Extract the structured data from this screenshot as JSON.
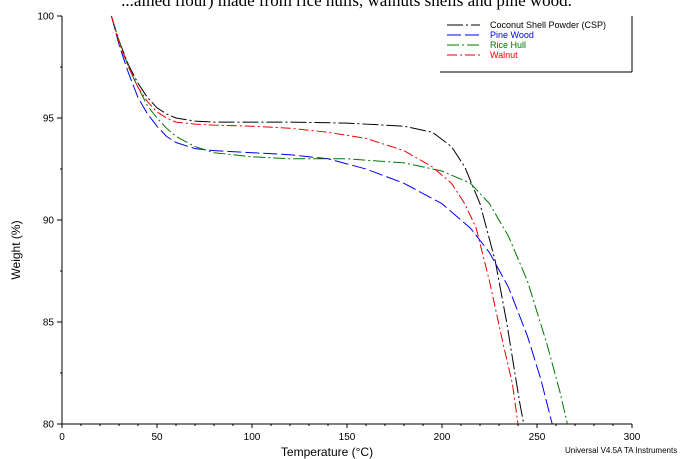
{
  "caption": "...ained flour) made from rice hulls, walnuts shells and pine wood.",
  "footer": "Universal V4.5A TA Instruments",
  "colors": {
    "Coconut Shell Powder (CSP)": "#000000",
    "Pine Wood": "#0000ee",
    "Rice Hull": "#007700",
    "Walnut": "#ee0000"
  },
  "chart_data": {
    "type": "line",
    "title": "",
    "xlabel": "Temperature (°C)",
    "ylabel": "Weight (%)",
    "xlim": [
      0,
      300
    ],
    "ylim": [
      80,
      100
    ],
    "x_ticks": [
      0,
      50,
      100,
      150,
      200,
      250,
      300
    ],
    "y_ticks": [
      80,
      85,
      90,
      95,
      100
    ],
    "grid": false,
    "legend_position": "top-right",
    "series": [
      {
        "name": "Coconut Shell Powder (CSP)",
        "x": [
          26,
          30,
          35,
          40,
          45,
          50,
          55,
          60,
          70,
          80,
          100,
          120,
          150,
          180,
          195,
          205,
          212,
          220,
          228,
          234,
          238,
          241,
          243
        ],
        "y": [
          100,
          98.8,
          97.6,
          96.7,
          96.0,
          95.5,
          95.2,
          95.0,
          94.85,
          94.8,
          94.8,
          94.8,
          94.75,
          94.6,
          94.3,
          93.6,
          92.6,
          90.8,
          88.0,
          85.0,
          82.7,
          81.0,
          80
        ]
      },
      {
        "name": "Pine Wood",
        "x": [
          26,
          30,
          35,
          40,
          45,
          50,
          55,
          60,
          70,
          80,
          100,
          120,
          140,
          160,
          180,
          200,
          215,
          225,
          235,
          245,
          252,
          258
        ],
        "y": [
          100,
          98.6,
          97.2,
          96.0,
          95.2,
          94.6,
          94.1,
          93.8,
          93.5,
          93.4,
          93.3,
          93.2,
          93.0,
          92.5,
          91.8,
          90.8,
          89.6,
          88.4,
          86.7,
          84.3,
          82.2,
          80
        ]
      },
      {
        "name": "Rice Hull",
        "x": [
          26,
          30,
          35,
          40,
          45,
          50,
          55,
          60,
          70,
          80,
          100,
          120,
          150,
          180,
          200,
          215,
          225,
          235,
          245,
          255,
          262,
          266
        ],
        "y": [
          100,
          98.8,
          97.5,
          96.5,
          95.6,
          95.0,
          94.5,
          94.1,
          93.6,
          93.3,
          93.1,
          93.0,
          93.0,
          92.8,
          92.4,
          91.8,
          90.8,
          89.2,
          87.0,
          84.0,
          81.6,
          80
        ]
      },
      {
        "name": "Walnut",
        "x": [
          26,
          30,
          35,
          40,
          45,
          50,
          55,
          60,
          70,
          80,
          100,
          120,
          140,
          160,
          180,
          195,
          205,
          212,
          218,
          225,
          232,
          237,
          240
        ],
        "y": [
          100,
          98.7,
          97.5,
          96.5,
          95.8,
          95.3,
          95.0,
          94.8,
          94.7,
          94.65,
          94.6,
          94.5,
          94.3,
          94.0,
          93.4,
          92.6,
          91.8,
          90.8,
          89.6,
          87.0,
          84.0,
          82.0,
          80
        ]
      }
    ]
  }
}
